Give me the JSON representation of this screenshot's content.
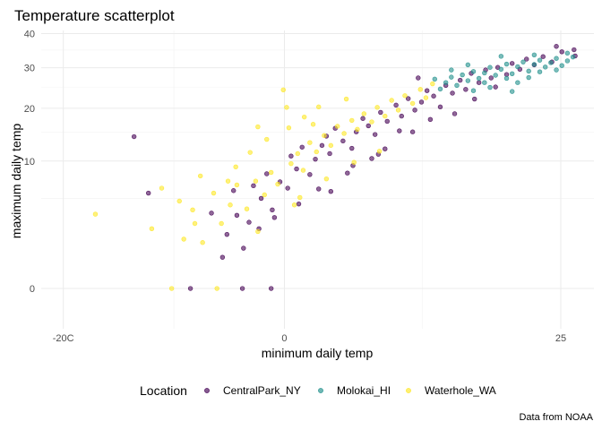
{
  "chart_data": {
    "type": "scatter",
    "title": "Temperature scatterplot",
    "xlabel": "minimum daily temp",
    "ylabel": "maximum daily temp",
    "caption": "Data from NOAA",
    "xlim": [
      -22,
      28
    ],
    "ylim": [
      -1,
      41
    ],
    "y_scale": "sqrt",
    "x_ticks": [
      {
        "value": -20,
        "label": "-20C"
      },
      {
        "value": 0,
        "label": "0"
      },
      {
        "value": 25,
        "label": "25"
      }
    ],
    "y_ticks": [
      {
        "value": 0,
        "label": "0"
      },
      {
        "value": 10,
        "label": "10"
      },
      {
        "value": 20,
        "label": "20"
      },
      {
        "value": 30,
        "label": "30"
      },
      {
        "value": 40,
        "label": "40"
      }
    ],
    "legend_title": "Location",
    "legend_position": "bottom",
    "grid": true,
    "series": [
      {
        "name": "CentralPark_NY",
        "color": "#440154",
        "points": [
          [
            -13.6,
            14.2
          ],
          [
            -12.3,
            5.6
          ],
          [
            -8.5,
            0
          ],
          [
            -3.8,
            0
          ],
          [
            -1.2,
            0
          ],
          [
            -5.2,
            1.8
          ],
          [
            -4.3,
            3.3
          ],
          [
            -3.2,
            2.7
          ],
          [
            -2.1,
            5.0
          ],
          [
            -1.1,
            3.8
          ],
          [
            -2.8,
            6.5
          ],
          [
            -0.4,
            7.0
          ],
          [
            -4.6,
            5.9
          ],
          [
            -1.6,
            8.1
          ],
          [
            0.3,
            6.2
          ],
          [
            1.1,
            8.8
          ],
          [
            0.6,
            10.8
          ],
          [
            1.6,
            12.3
          ],
          [
            2.3,
            8.0
          ],
          [
            2.8,
            10.3
          ],
          [
            3.4,
            12.6
          ],
          [
            4.1,
            11.2
          ],
          [
            3.8,
            14.3
          ],
          [
            4.6,
            15.8
          ],
          [
            5.3,
            13.4
          ],
          [
            6.1,
            12.1
          ],
          [
            6.5,
            15.1
          ],
          [
            7.1,
            17.8
          ],
          [
            7.6,
            16.3
          ],
          [
            8.2,
            14.6
          ],
          [
            8.7,
            19.1
          ],
          [
            9.3,
            17.2
          ],
          [
            10.1,
            20.7
          ],
          [
            10.6,
            18.3
          ],
          [
            11.2,
            22.2
          ],
          [
            11.8,
            19.6
          ],
          [
            12.4,
            21.4
          ],
          [
            12.9,
            24.1
          ],
          [
            13.5,
            22.8
          ],
          [
            14.1,
            20.3
          ],
          [
            14.6,
            25.4
          ],
          [
            15.2,
            23.5
          ],
          [
            15.9,
            26.7
          ],
          [
            16.4,
            24.4
          ],
          [
            16.9,
            28.5
          ],
          [
            17.6,
            26.1
          ],
          [
            18.2,
            29.4
          ],
          [
            18.7,
            27.3
          ],
          [
            19.3,
            30.1
          ],
          [
            20.1,
            28.2
          ],
          [
            20.6,
            31.2
          ],
          [
            21.3,
            29.6
          ],
          [
            21.9,
            32.4
          ],
          [
            22.6,
            30.8
          ],
          [
            23.4,
            33.1
          ],
          [
            24.2,
            31.6
          ],
          [
            25.1,
            34.5
          ],
          [
            24.6,
            36.1
          ],
          [
            26.2,
            35.1
          ],
          [
            26.3,
            33.3
          ],
          [
            9.1,
            12.0
          ],
          [
            11.6,
            15.1
          ],
          [
            13.2,
            17.6
          ],
          [
            12.1,
            27.3
          ],
          [
            10.4,
            15.3
          ],
          [
            7.9,
            10.4
          ],
          [
            5.7,
            8.2
          ],
          [
            3.1,
            6.1
          ],
          [
            -0.9,
            3.1
          ],
          [
            -3.7,
            1.0
          ],
          [
            -5.6,
            0.6
          ],
          [
            -6.6,
            3.5
          ],
          [
            -2.3,
            2.2
          ],
          [
            1.3,
            4.4
          ],
          [
            4.2,
            5.8
          ],
          [
            6.2,
            9.3
          ],
          [
            8.5,
            11.1
          ],
          [
            15.4,
            18.8
          ],
          [
            17.2,
            22.1
          ],
          [
            19.1,
            25.0
          ]
        ]
      },
      {
        "name": "Molokai_HI",
        "color": "#21908C",
        "points": [
          [
            14.1,
            24.5
          ],
          [
            14.6,
            26.1
          ],
          [
            15.1,
            27.5
          ],
          [
            15.6,
            25.4
          ],
          [
            16.1,
            28.1
          ],
          [
            16.6,
            26.6
          ],
          [
            17.1,
            29.0
          ],
          [
            17.6,
            27.2
          ],
          [
            18.1,
            28.6
          ],
          [
            18.6,
            30.1
          ],
          [
            19.1,
            28.0
          ],
          [
            19.6,
            29.6
          ],
          [
            20.1,
            31.0
          ],
          [
            20.6,
            28.4
          ],
          [
            21.1,
            30.3
          ],
          [
            21.6,
            31.6
          ],
          [
            22.1,
            29.1
          ],
          [
            22.6,
            30.9
          ],
          [
            23.1,
            32.1
          ],
          [
            23.6,
            30.2
          ],
          [
            24.1,
            31.4
          ],
          [
            24.6,
            32.6
          ],
          [
            25.1,
            30.6
          ],
          [
            25.6,
            31.9
          ],
          [
            26.1,
            33.0
          ],
          [
            18.6,
            24.9
          ],
          [
            20.6,
            23.9
          ],
          [
            15.1,
            29.4
          ],
          [
            13.6,
            27.0
          ],
          [
            19.6,
            33.2
          ],
          [
            21.1,
            26.1
          ],
          [
            17.1,
            24.1
          ],
          [
            22.1,
            27.4
          ],
          [
            16.6,
            30.8
          ],
          [
            20.1,
            27.2
          ],
          [
            23.1,
            28.9
          ],
          [
            18.1,
            26.1
          ],
          [
            24.6,
            29.4
          ],
          [
            25.6,
            34.1
          ],
          [
            22.6,
            33.6
          ]
        ]
      },
      {
        "name": "Waterhole_WA",
        "color": "#FDE725",
        "points": [
          [
            -17.1,
            3.4
          ],
          [
            -12.0,
            2.2
          ],
          [
            -10.2,
            0
          ],
          [
            -9.1,
            1.5
          ],
          [
            -8.3,
            3.8
          ],
          [
            -7.4,
            1.3
          ],
          [
            -6.4,
            5.6
          ],
          [
            -5.7,
            2.6
          ],
          [
            -4.9,
            4.3
          ],
          [
            -4.3,
            6.6
          ],
          [
            -3.4,
            3.9
          ],
          [
            -2.6,
            7.1
          ],
          [
            -1.8,
            5.4
          ],
          [
            -1.2,
            8.3
          ],
          [
            -0.6,
            6.7
          ],
          [
            -0.1,
            24.3
          ],
          [
            0.6,
            9.6
          ],
          [
            1.2,
            11.2
          ],
          [
            1.7,
            8.6
          ],
          [
            2.3,
            13.1
          ],
          [
            2.9,
            11.5
          ],
          [
            3.6,
            14.4
          ],
          [
            4.2,
            12.6
          ],
          [
            4.8,
            16.2
          ],
          [
            5.4,
            14.8
          ],
          [
            6.1,
            17.4
          ],
          [
            6.6,
            15.6
          ],
          [
            7.2,
            18.8
          ],
          [
            7.9,
            17.1
          ],
          [
            8.4,
            20.2
          ],
          [
            9.1,
            18.3
          ],
          [
            9.7,
            21.8
          ],
          [
            10.3,
            19.6
          ],
          [
            10.9,
            22.9
          ],
          [
            11.6,
            21.1
          ],
          [
            12.3,
            24.4
          ],
          [
            12.8,
            22.4
          ],
          [
            13.4,
            25.8
          ],
          [
            8.6,
            11.6
          ],
          [
            6.3,
            9.8
          ],
          [
            3.8,
            7.4
          ],
          [
            1.4,
            5.1
          ],
          [
            -2.4,
            2.0
          ],
          [
            -9.5,
            4.7
          ],
          [
            -11.1,
            6.2
          ],
          [
            -7.6,
            7.8
          ],
          [
            -6.1,
            0
          ],
          [
            -4.4,
            9.1
          ],
          [
            -3.1,
            11.4
          ],
          [
            -2.4,
            16.1
          ],
          [
            0.4,
            15.9
          ],
          [
            1.8,
            18.1
          ],
          [
            3.1,
            20.3
          ],
          [
            0.9,
            4.3
          ],
          [
            -1.6,
            13.7
          ],
          [
            0.2,
            20.2
          ],
          [
            5.6,
            22.1
          ],
          [
            2.6,
            16.6
          ],
          [
            -5.1,
            7.1
          ],
          [
            -8.1,
            2.6
          ]
        ]
      }
    ]
  }
}
